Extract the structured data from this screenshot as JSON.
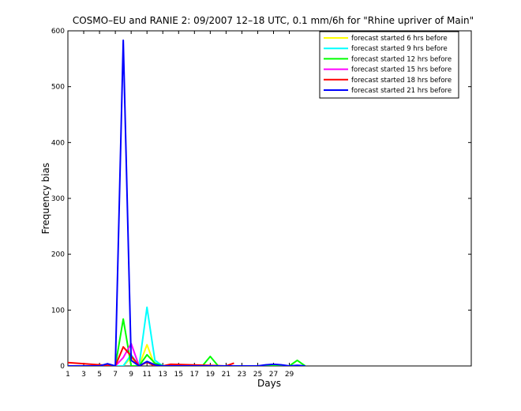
{
  "chart_data": {
    "type": "line",
    "title": "COSMO–EU and RANIE 2: 09/2007 12–18 UTC, 0.1 mm/6h for \"Rhine upriver of Main\"",
    "xlabel": "Days",
    "ylabel": "Frequency bias",
    "xlim": [
      1,
      52
    ],
    "ylim": [
      0,
      600
    ],
    "xticks": [
      1,
      3,
      5,
      7,
      9,
      11,
      13,
      15,
      17,
      19,
      21,
      23,
      25,
      27,
      29
    ],
    "yticks": [
      0,
      100,
      200,
      300,
      400,
      500,
      600
    ],
    "legend_position": "top-right",
    "grid": false,
    "series": [
      {
        "name": "forecast started 6 hrs before",
        "color": "#ffff00",
        "x": [
          1,
          7,
          8,
          9,
          10,
          11,
          12,
          13
        ],
        "y": [
          0,
          0,
          0,
          15,
          0,
          38,
          0,
          0
        ]
      },
      {
        "name": "forecast started 9 hrs before",
        "color": "#00ffff",
        "x": [
          1,
          6,
          7,
          8,
          9,
          10,
          11,
          12,
          13
        ],
        "y": [
          0,
          0,
          0,
          0,
          20,
          0,
          105,
          10,
          0
        ]
      },
      {
        "name": "forecast started 12 hrs before",
        "color": "#00ff00",
        "x": [
          1,
          7,
          8,
          9,
          10,
          11,
          12,
          13,
          18,
          19,
          20,
          29,
          30,
          31
        ],
        "y": [
          0,
          0,
          84,
          0,
          0,
          20,
          5,
          0,
          0,
          17,
          0,
          0,
          10,
          0
        ]
      },
      {
        "name": "forecast started 15 hrs before",
        "color": "#ff00ff",
        "x": [
          1,
          7,
          8,
          9,
          10,
          11,
          12,
          13
        ],
        "y": [
          0,
          0,
          15,
          40,
          0,
          7,
          0,
          0
        ]
      },
      {
        "name": "forecast started 18 hrs before",
        "color": "#ff0000",
        "x": [
          1,
          7,
          8,
          9,
          10,
          11,
          12,
          13,
          14,
          21,
          22
        ],
        "y": [
          6,
          0,
          34,
          18,
          0,
          7,
          0,
          0,
          3,
          0,
          5
        ]
      },
      {
        "name": "forecast started 21 hrs before",
        "color": "#0000ff",
        "x": [
          1,
          5,
          6,
          7,
          8,
          9,
          10,
          11,
          12,
          13,
          14,
          25,
          26,
          27,
          28,
          29,
          30,
          31
        ],
        "y": [
          0,
          0,
          4,
          0,
          583,
          10,
          0,
          8,
          2,
          0,
          0,
          0,
          2,
          3,
          2,
          0,
          1,
          0
        ]
      }
    ]
  }
}
